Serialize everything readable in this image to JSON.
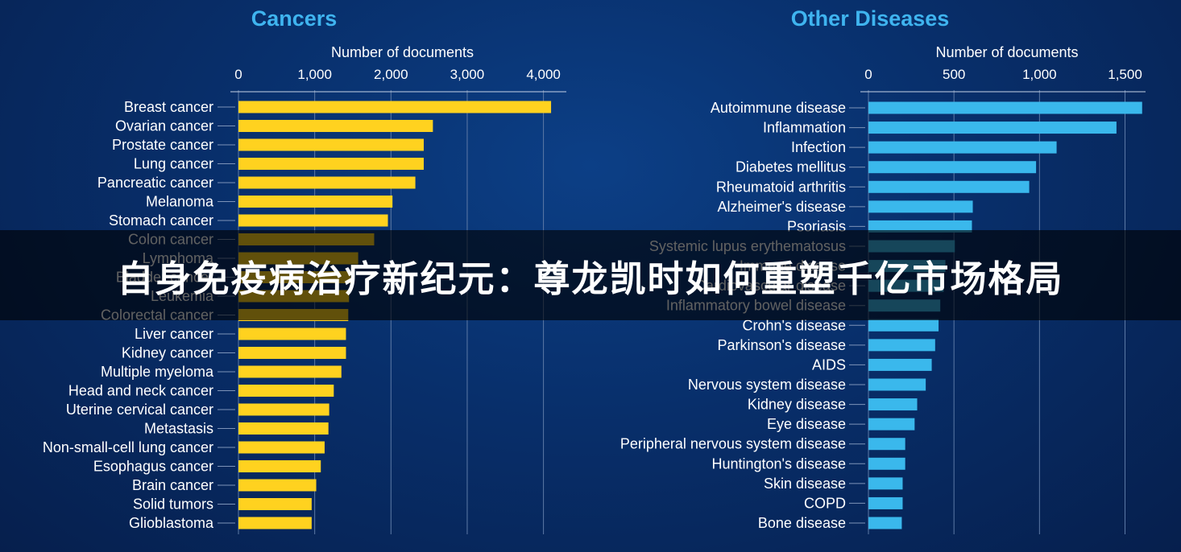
{
  "banner": {
    "title": "自身免疫病治疗新纪元：尊龙凯时如何重塑千亿市场格局"
  },
  "colors": {
    "cancers": "#ffd21f",
    "other": "#3ab8ec",
    "title": "#3fb4ef",
    "text": "#ffffff",
    "grid": "#5d7aa6"
  },
  "chart_data": [
    {
      "type": "bar",
      "orientation": "horizontal",
      "title": "Cancers",
      "xlabel": "Number of documents",
      "xlim": [
        0,
        4300
      ],
      "ticks": [
        0,
        1000,
        2000,
        3000,
        4000
      ],
      "tick_labels": [
        "0",
        "1,000",
        "2,000",
        "3,000",
        "4,000"
      ],
      "categories": [
        "Breast cancer",
        "Ovarian cancer",
        "Prostate cancer",
        "Lung cancer",
        "Pancreatic cancer",
        "Melanoma",
        "Stomach cancer",
        "Colon cancer",
        "Lymphoma",
        "Bladder cancer",
        "Leukemia",
        "Colorectal cancer",
        "Liver cancer",
        "Kidney cancer",
        "Multiple myeloma",
        "Head and neck cancer",
        "Uterine cervical cancer",
        "Metastasis",
        "Non-small-cell lung cancer",
        "Esophagus cancer",
        "Brain cancer",
        "Solid tumors",
        "Glioblastoma"
      ],
      "values": [
        4100,
        2550,
        2430,
        2430,
        2320,
        2020,
        1960,
        1780,
        1570,
        1470,
        1450,
        1440,
        1410,
        1410,
        1350,
        1250,
        1190,
        1180,
        1130,
        1080,
        1020,
        960,
        960
      ],
      "color": "#ffd21f",
      "grid": true
    },
    {
      "type": "bar",
      "orientation": "horizontal",
      "title": "Other Diseases",
      "xlabel": "Number of documents",
      "xlim": [
        0,
        1620
      ],
      "ticks": [
        0,
        500,
        1000,
        1500
      ],
      "tick_labels": [
        "0",
        "500",
        "1,000",
        "1,500"
      ],
      "categories": [
        "Autoimmune disease",
        "Inflammation",
        "Infection",
        "Diabetes mellitus",
        "Rheumatoid arthritis",
        "Alzheimer's disease",
        "Psoriasis",
        "Systemic lupus erythematosus",
        "Immune disease",
        "Cardiovascular disease",
        "Inflammatory bowel disease",
        "Crohn's disease",
        "Parkinson's disease",
        "AIDS",
        "Nervous system disease",
        "Kidney disease",
        "Eye disease",
        "Peripheral nervous system disease",
        "Huntington's disease",
        "Skin disease",
        "COPD",
        "Bone disease"
      ],
      "values": [
        1600,
        1450,
        1100,
        980,
        940,
        610,
        605,
        505,
        450,
        440,
        420,
        410,
        390,
        370,
        335,
        285,
        270,
        215,
        215,
        200,
        200,
        195
      ],
      "color": "#3ab8ec",
      "grid": true
    }
  ]
}
